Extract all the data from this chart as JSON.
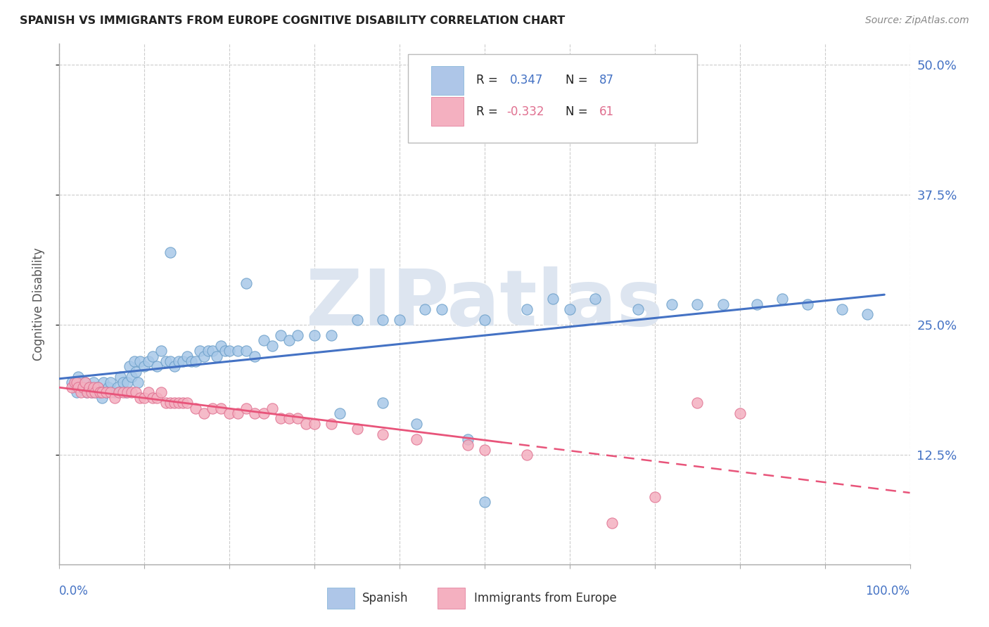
{
  "title": "SPANISH VS IMMIGRANTS FROM EUROPE COGNITIVE DISABILITY CORRELATION CHART",
  "source": "Source: ZipAtlas.com",
  "ylabel": "Cognitive Disability",
  "ytick_labels": [
    "12.5%",
    "25.0%",
    "37.5%",
    "50.0%"
  ],
  "ytick_values": [
    0.125,
    0.25,
    0.375,
    0.5
  ],
  "xlim": [
    0.0,
    1.0
  ],
  "ylim": [
    0.02,
    0.52
  ],
  "legend_entries": [
    {
      "color_fill": "#aec6e8",
      "color_edge": "#7bafd4",
      "r_val": "0.347",
      "n_val": "87",
      "r_color": "#4472c4",
      "n_color": "#4472c4"
    },
    {
      "color_fill": "#f4b0c0",
      "color_edge": "#e07090",
      "r_val": "-0.332",
      "n_val": "61",
      "r_color": "#e07090",
      "n_color": "#e07090"
    }
  ],
  "series1_color": "#a8c8e8",
  "series1_edge": "#6a9ec8",
  "series2_color": "#f4b0c0",
  "series2_edge": "#e07090",
  "trendline1_color": "#4472c4",
  "trendline2_color": "#e8547a",
  "watermark": "ZIPatlas",
  "watermark_color": "#dde5f0",
  "grid_color": "#cccccc",
  "tick_color": "#4472c4",
  "ylabel_color": "#555555",
  "title_color": "#222222",
  "source_color": "#888888",
  "spanish_x": [
    0.015,
    0.02,
    0.022,
    0.025,
    0.03,
    0.032,
    0.035,
    0.038,
    0.04,
    0.042,
    0.045,
    0.048,
    0.05,
    0.052,
    0.055,
    0.058,
    0.06,
    0.065,
    0.068,
    0.07,
    0.072,
    0.075,
    0.078,
    0.08,
    0.082,
    0.085,
    0.088,
    0.09,
    0.092,
    0.095,
    0.1,
    0.105,
    0.11,
    0.115,
    0.12,
    0.125,
    0.13,
    0.135,
    0.14,
    0.145,
    0.15,
    0.155,
    0.16,
    0.165,
    0.17,
    0.175,
    0.18,
    0.185,
    0.19,
    0.195,
    0.2,
    0.21,
    0.22,
    0.23,
    0.24,
    0.25,
    0.26,
    0.27,
    0.28,
    0.3,
    0.32,
    0.35,
    0.38,
    0.4,
    0.43,
    0.45,
    0.5,
    0.55,
    0.58,
    0.6,
    0.63,
    0.68,
    0.72,
    0.75,
    0.78,
    0.82,
    0.85,
    0.88,
    0.92,
    0.95,
    0.13,
    0.22,
    0.33,
    0.42,
    0.48,
    0.5,
    0.38
  ],
  "spanish_y": [
    0.195,
    0.185,
    0.2,
    0.19,
    0.195,
    0.185,
    0.19,
    0.185,
    0.195,
    0.185,
    0.19,
    0.185,
    0.18,
    0.195,
    0.185,
    0.19,
    0.195,
    0.185,
    0.19,
    0.185,
    0.2,
    0.195,
    0.185,
    0.195,
    0.21,
    0.2,
    0.215,
    0.205,
    0.195,
    0.215,
    0.21,
    0.215,
    0.22,
    0.21,
    0.225,
    0.215,
    0.215,
    0.21,
    0.215,
    0.215,
    0.22,
    0.215,
    0.215,
    0.225,
    0.22,
    0.225,
    0.225,
    0.22,
    0.23,
    0.225,
    0.225,
    0.225,
    0.225,
    0.22,
    0.235,
    0.23,
    0.24,
    0.235,
    0.24,
    0.24,
    0.24,
    0.255,
    0.255,
    0.255,
    0.265,
    0.265,
    0.255,
    0.265,
    0.275,
    0.265,
    0.275,
    0.265,
    0.27,
    0.27,
    0.27,
    0.27,
    0.275,
    0.27,
    0.265,
    0.26,
    0.32,
    0.29,
    0.165,
    0.155,
    0.14,
    0.08,
    0.175
  ],
  "europe_x": [
    0.015,
    0.018,
    0.02,
    0.022,
    0.025,
    0.028,
    0.03,
    0.033,
    0.035,
    0.038,
    0.04,
    0.042,
    0.045,
    0.048,
    0.05,
    0.055,
    0.06,
    0.065,
    0.07,
    0.075,
    0.08,
    0.085,
    0.09,
    0.095,
    0.1,
    0.105,
    0.11,
    0.115,
    0.12,
    0.125,
    0.13,
    0.135,
    0.14,
    0.145,
    0.15,
    0.16,
    0.17,
    0.18,
    0.19,
    0.2,
    0.21,
    0.22,
    0.23,
    0.24,
    0.25,
    0.26,
    0.27,
    0.28,
    0.29,
    0.3,
    0.32,
    0.35,
    0.38,
    0.42,
    0.48,
    0.5,
    0.55,
    0.65,
    0.7,
    0.75,
    0.8
  ],
  "europe_y": [
    0.19,
    0.195,
    0.195,
    0.19,
    0.185,
    0.19,
    0.195,
    0.185,
    0.19,
    0.185,
    0.19,
    0.185,
    0.19,
    0.185,
    0.185,
    0.185,
    0.185,
    0.18,
    0.185,
    0.185,
    0.185,
    0.185,
    0.185,
    0.18,
    0.18,
    0.185,
    0.18,
    0.18,
    0.185,
    0.175,
    0.175,
    0.175,
    0.175,
    0.175,
    0.175,
    0.17,
    0.165,
    0.17,
    0.17,
    0.165,
    0.165,
    0.17,
    0.165,
    0.165,
    0.17,
    0.16,
    0.16,
    0.16,
    0.155,
    0.155,
    0.155,
    0.15,
    0.145,
    0.14,
    0.135,
    0.13,
    0.125,
    0.06,
    0.085,
    0.175,
    0.165
  ]
}
